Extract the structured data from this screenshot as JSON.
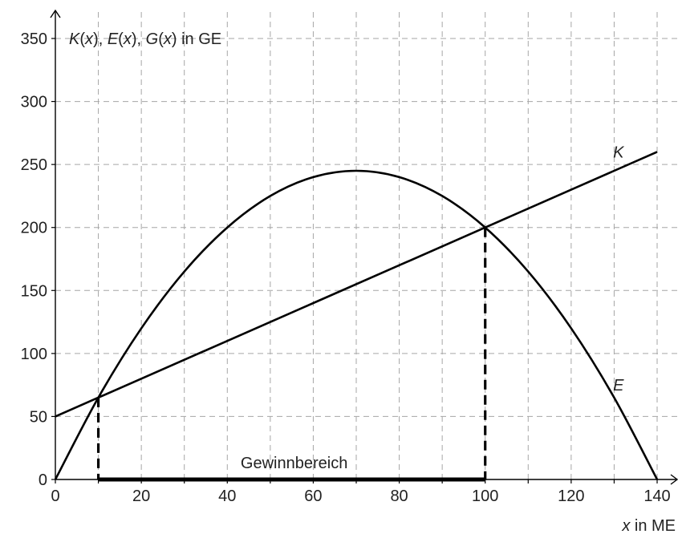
{
  "chart_data": {
    "type": "line",
    "ylabel_parts": {
      "K": "K",
      "E": "E",
      "G": "G",
      "x": "x",
      "open": "(",
      "close": ")",
      "sep": ", ",
      "unit": " in GE"
    },
    "xlabel_parts": {
      "var": "x",
      "unit": " in ME"
    },
    "xlim": [
      0,
      140
    ],
    "ylim": [
      0,
      350
    ],
    "x_ticks": [
      0,
      20,
      40,
      60,
      80,
      100,
      120,
      140
    ],
    "y_ticks": [
      0,
      50,
      100,
      150,
      200,
      250,
      300,
      350
    ],
    "grid": true,
    "series": [
      {
        "name": "K",
        "x": [
          0,
          10,
          20,
          40,
          60,
          80,
          100,
          120,
          140
        ],
        "y": [
          50,
          65,
          80,
          110,
          140,
          170,
          200,
          230,
          260
        ]
      },
      {
        "name": "E",
        "x": [
          0,
          10,
          20,
          30,
          40,
          50,
          60,
          70,
          80,
          90,
          100,
          110,
          120,
          130,
          140
        ],
        "y": [
          0,
          65,
          120,
          165,
          200,
          225,
          240,
          245,
          240,
          225,
          200,
          165,
          120,
          65,
          0
        ]
      }
    ],
    "annotations": {
      "region_label": "Gewinnbereich",
      "region_x": [
        10,
        100
      ],
      "drop_points": [
        [
          10,
          65
        ],
        [
          100,
          200
        ]
      ]
    }
  }
}
